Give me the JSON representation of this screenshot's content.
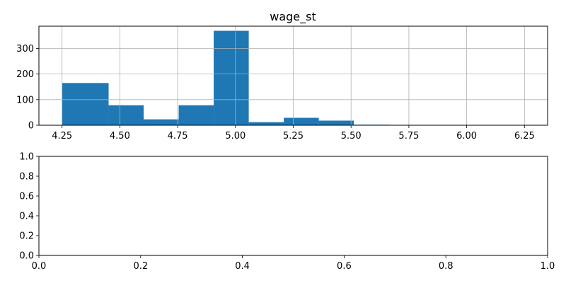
{
  "chart_data": [
    {
      "type": "bar",
      "subtype": "histogram",
      "title": "wage_st",
      "xlabel": "",
      "ylabel": "",
      "grid": true,
      "color": "#1f77b4",
      "bin_edges": [
        4.25,
        4.4515,
        4.603,
        4.7545,
        4.906,
        5.0575,
        5.209,
        5.3605,
        5.512,
        5.6635,
        5.815,
        5.9665,
        6.118,
        6.2695
      ],
      "values": [
        165,
        78,
        23,
        78,
        369,
        12,
        29,
        18,
        2,
        1,
        1,
        0,
        0
      ],
      "xlim": [
        4.15,
        6.35
      ],
      "ylim": [
        0,
        387
      ],
      "xticks": [
        4.25,
        4.5,
        4.75,
        5.0,
        5.25,
        5.5,
        5.75,
        6.0,
        6.25
      ],
      "xtick_labels": [
        "4.25",
        "4.50",
        "4.75",
        "5.00",
        "5.25",
        "5.50",
        "5.75",
        "6.00",
        "6.25"
      ],
      "yticks": [
        0,
        100,
        200,
        300
      ],
      "ytick_labels": [
        "0",
        "100",
        "200",
        "300"
      ]
    },
    {
      "type": "scatter",
      "title": "",
      "xlabel": "",
      "ylabel": "",
      "grid": false,
      "xlim": [
        0,
        1
      ],
      "ylim": [
        0,
        1
      ],
      "xticks": [
        0,
        0.2,
        0.4,
        0.6,
        0.8,
        1.0
      ],
      "xtick_labels": [
        "0.0",
        "0.2",
        "0.4",
        "0.6",
        "0.8",
        "1.0"
      ],
      "yticks": [
        0,
        0.2,
        0.4,
        0.6,
        0.8,
        1.0
      ],
      "ytick_labels": [
        "0.0",
        "0.2",
        "0.4",
        "0.6",
        "0.8",
        "1.0"
      ],
      "series": []
    }
  ]
}
